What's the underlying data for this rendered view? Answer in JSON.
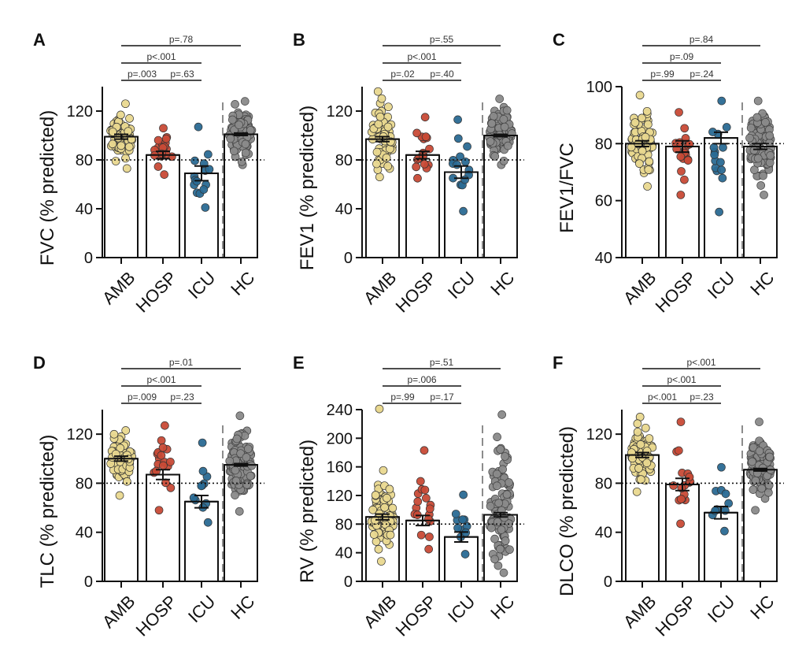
{
  "colors": {
    "AMB": "#e9d88f",
    "HOSP": "#c84a36",
    "ICU": "#2a6a94",
    "HC": "#8a8a8a"
  },
  "chart_data": [
    {
      "type": "bar",
      "panel": "A",
      "ylabel": "FVC (% predicted)",
      "categories": [
        "AMB",
        "HOSP",
        "ICU",
        "HC"
      ],
      "means": [
        99,
        84,
        69,
        101
      ],
      "sem": [
        2,
        3,
        6,
        1
      ],
      "ylim": [
        0,
        140
      ],
      "yticks": [
        0,
        40,
        80,
        120
      ],
      "reference": 80,
      "ranges": [
        [
          73,
          126
        ],
        [
          68,
          106
        ],
        [
          41,
          107
        ],
        [
          76,
          128
        ]
      ],
      "n": [
        70,
        18,
        15,
        100
      ],
      "comparisons": [
        {
          "pair": [
            "AMB",
            "HOSP"
          ],
          "p": "p=.003"
        },
        {
          "pair": [
            "HOSP",
            "ICU"
          ],
          "p": "p=.63"
        },
        {
          "pair": [
            "AMB",
            "ICU"
          ],
          "p": "p<.001"
        },
        {
          "pair": [
            "AMB",
            "HC"
          ],
          "p": "p=.78"
        }
      ]
    },
    {
      "type": "bar",
      "panel": "B",
      "ylabel": "FEV1 (% predicted)",
      "categories": [
        "AMB",
        "HOSP",
        "ICU",
        "HC"
      ],
      "means": [
        97,
        84,
        70,
        100
      ],
      "sem": [
        2,
        3,
        5,
        1
      ],
      "ylim": [
        0,
        140
      ],
      "yticks": [
        0,
        40,
        80,
        120
      ],
      "reference": 80,
      "ranges": [
        [
          66,
          136
        ],
        [
          65,
          115
        ],
        [
          38,
          113
        ],
        [
          76,
          130
        ]
      ],
      "n": [
        70,
        18,
        15,
        100
      ],
      "comparisons": [
        {
          "pair": [
            "AMB",
            "HOSP"
          ],
          "p": "p=.02"
        },
        {
          "pair": [
            "HOSP",
            "ICU"
          ],
          "p": "p=.40"
        },
        {
          "pair": [
            "AMB",
            "ICU"
          ],
          "p": "p<.001"
        },
        {
          "pair": [
            "AMB",
            "HC"
          ],
          "p": "p=.55"
        }
      ]
    },
    {
      "type": "bar",
      "panel": "C",
      "ylabel": "FEV1/FVC",
      "categories": [
        "AMB",
        "HOSP",
        "ICU",
        "HC"
      ],
      "means": [
        80,
        79,
        82,
        79
      ],
      "sem": [
        1,
        2,
        2,
        1
      ],
      "ylim": [
        40,
        100
      ],
      "yticks": [
        40,
        60,
        80,
        100
      ],
      "reference": 80,
      "ranges": [
        [
          65,
          97
        ],
        [
          62,
          91
        ],
        [
          56,
          95
        ],
        [
          62,
          95
        ]
      ],
      "n": [
        70,
        18,
        15,
        100
      ],
      "comparisons": [
        {
          "pair": [
            "AMB",
            "HOSP"
          ],
          "p": "p=.99"
        },
        {
          "pair": [
            "HOSP",
            "ICU"
          ],
          "p": "p=.24"
        },
        {
          "pair": [
            "AMB",
            "ICU"
          ],
          "p": "p=.09"
        },
        {
          "pair": [
            "AMB",
            "HC"
          ],
          "p": "p=.84"
        }
      ]
    },
    {
      "type": "bar",
      "panel": "D",
      "ylabel": "TLC (% predicted)",
      "categories": [
        "AMB",
        "HOSP",
        "ICU",
        "HC"
      ],
      "means": [
        100,
        87,
        65,
        95
      ],
      "sem": [
        2,
        4,
        5,
        1
      ],
      "ylim": [
        0,
        140
      ],
      "yticks": [
        0,
        40,
        80,
        120
      ],
      "reference": 80,
      "ranges": [
        [
          70,
          123
        ],
        [
          58,
          127
        ],
        [
          48,
          113
        ],
        [
          57,
          135
        ]
      ],
      "n": [
        70,
        18,
        11,
        100
      ],
      "comparisons": [
        {
          "pair": [
            "AMB",
            "HOSP"
          ],
          "p": "p=.009"
        },
        {
          "pair": [
            "HOSP",
            "ICU"
          ],
          "p": "p=.23"
        },
        {
          "pair": [
            "AMB",
            "ICU"
          ],
          "p": "p<.001"
        },
        {
          "pair": [
            "AMB",
            "HC"
          ],
          "p": "p=.01"
        }
      ]
    },
    {
      "type": "bar",
      "panel": "E",
      "ylabel": "RV (% predicted)",
      "categories": [
        "AMB",
        "HOSP",
        "ICU",
        "HC"
      ],
      "means": [
        90,
        85,
        62,
        93
      ],
      "sem": [
        4,
        7,
        7,
        3
      ],
      "ylim": [
        0,
        240
      ],
      "yticks": [
        0,
        40,
        80,
        120,
        160,
        200,
        240
      ],
      "reference": 80,
      "ranges": [
        [
          28,
          155
        ],
        [
          45,
          183
        ],
        [
          38,
          121
        ],
        [
          12,
          233
        ]
      ],
      "outliers": [
        [
          0,
          241
        ]
      ],
      "n": [
        70,
        18,
        11,
        100
      ],
      "comparisons": [
        {
          "pair": [
            "AMB",
            "HOSP"
          ],
          "p": "p=.99"
        },
        {
          "pair": [
            "HOSP",
            "ICU"
          ],
          "p": "p=.17"
        },
        {
          "pair": [
            "AMB",
            "ICU"
          ],
          "p": "p=.006"
        },
        {
          "pair": [
            "AMB",
            "HC"
          ],
          "p": "p=.51"
        }
      ]
    },
    {
      "type": "bar",
      "panel": "F",
      "ylabel": "DLCO (% predicted)",
      "categories": [
        "AMB",
        "HOSP",
        "ICU",
        "HC"
      ],
      "means": [
        103,
        79,
        56,
        91
      ],
      "sem": [
        2,
        5,
        5,
        1
      ],
      "ylim": [
        0,
        140
      ],
      "yticks": [
        0,
        40,
        80,
        120
      ],
      "reference": 80,
      "ranges": [
        [
          73,
          134
        ],
        [
          47,
          130
        ],
        [
          41,
          93
        ],
        [
          58,
          130
        ]
      ],
      "n": [
        80,
        18,
        10,
        100
      ],
      "comparisons": [
        {
          "pair": [
            "AMB",
            "HOSP"
          ],
          "p": "p<.001"
        },
        {
          "pair": [
            "HOSP",
            "ICU"
          ],
          "p": "p=.23"
        },
        {
          "pair": [
            "AMB",
            "ICU"
          ],
          "p": "p<.001"
        },
        {
          "pair": [
            "AMB",
            "HC"
          ],
          "p": "p<.001"
        }
      ]
    }
  ]
}
